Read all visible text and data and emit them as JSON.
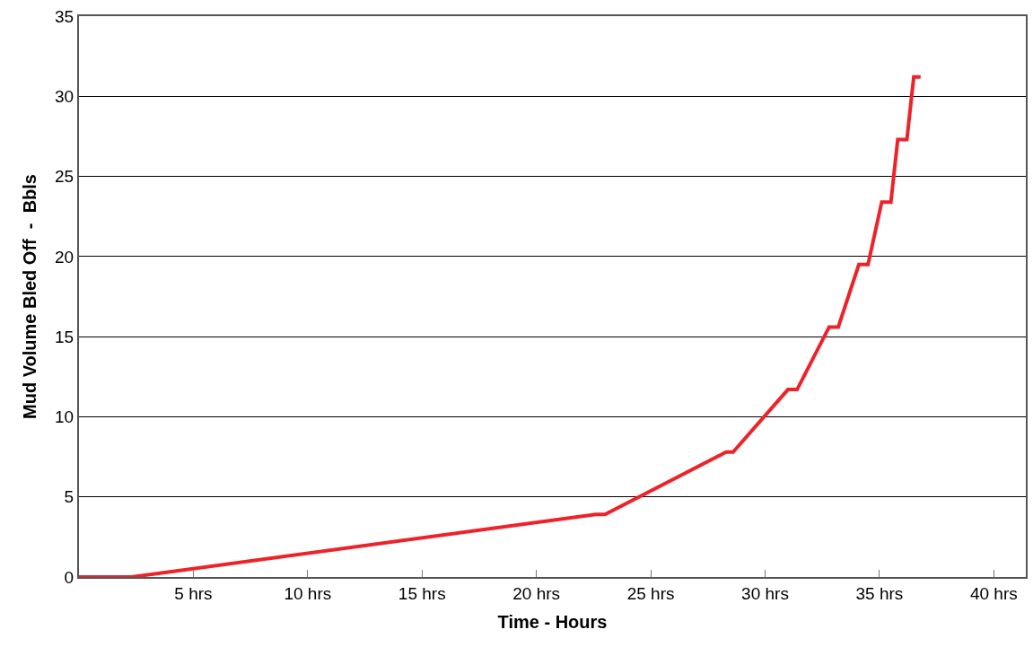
{
  "chart_data": {
    "type": "line",
    "xlabel": "Time - Hours",
    "ylabel": "Mud Volume Bled Off  -  Bbls",
    "x": [
      0,
      2.3,
      22.6,
      23.0,
      28.3,
      28.6,
      31.0,
      31.4,
      32.8,
      33.2,
      34.1,
      34.5,
      35.1,
      35.5,
      35.8,
      36.2,
      36.5,
      36.8
    ],
    "series": [
      {
        "color": "#ee2229",
        "values": [
          0,
          0,
          3.9,
          3.9,
          7.8,
          7.8,
          11.7,
          11.7,
          15.6,
          15.6,
          19.5,
          19.5,
          23.4,
          23.4,
          27.3,
          27.3,
          31.2,
          31.2
        ]
      }
    ],
    "xlim": [
      0,
      41.4
    ],
    "xticks": [
      {
        "value": 5,
        "label": "5 hrs"
      },
      {
        "value": 10,
        "label": "10 hrs"
      },
      {
        "value": 15,
        "label": "15 hrs"
      },
      {
        "value": 20,
        "label": "20 hrs"
      },
      {
        "value": 25,
        "label": "25 hrs"
      },
      {
        "value": 30,
        "label": "30 hrs"
      },
      {
        "value": 35,
        "label": "35 hrs"
      },
      {
        "value": 40,
        "label": "40 hrs"
      }
    ],
    "ylim": [
      0,
      35
    ],
    "yticks": [
      0,
      5,
      10,
      15,
      20,
      25,
      30,
      35
    ],
    "grid": "y",
    "legend": false,
    "marker": "none",
    "line_style": "solid"
  }
}
